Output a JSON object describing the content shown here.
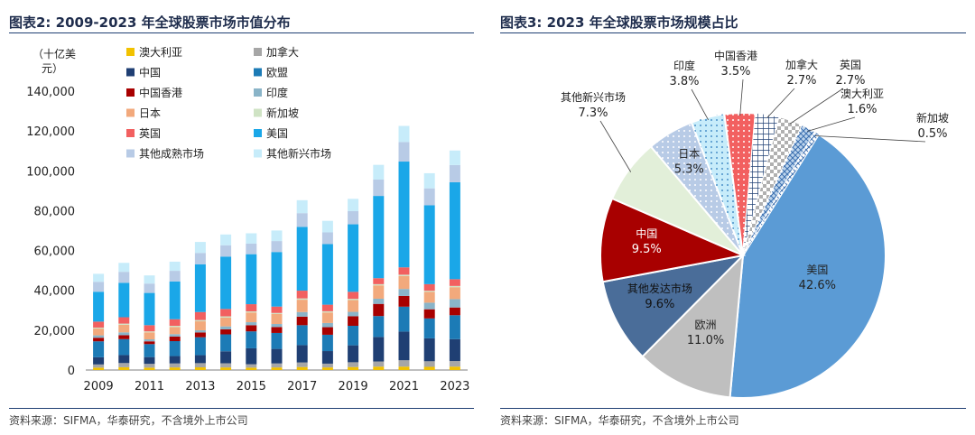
{
  "left_panel": {
    "title": "图表2:  2009-2023 年全球股票市场市值分布",
    "source": "资料来源：SIFMA，华泰研究，不含境外上市公司"
  },
  "right_panel": {
    "title": "图表3:  2023 年全球股票市场规模占比",
    "source": "资料来源：SIFMA，华泰研究，不含境外上市公司"
  },
  "colors": {
    "澳大利亚": "#f2c200",
    "加拿大": "#a6a6a6",
    "中国": "#1f3f73",
    "欧盟": "#1c7bb6",
    "中国香港": "#a80000",
    "印度": "#8ab4c8",
    "日本": "#f2a97c",
    "新加坡": "#cfe3c4",
    "英国": "#f26060",
    "美国": "#1aa7e8",
    "其他成熟市场": "#b8cbe6",
    "其他新兴市场": "#c7ecfa",
    "欧洲": "#bfbfbf",
    "其他发达市场": "#4a6d99",
    "美国_pie": "#5b9bd5",
    "其他新兴市场_pie": "#e2efd9",
    "澳大利亚_pie": "#bcd4ec"
  },
  "chart_data": [
    {
      "type": "bar",
      "stacked": true,
      "title": "2009-2023 年全球股票市场市值分布",
      "ylabel": "（十亿美元）",
      "ylabel_lines": [
        "（十亿美",
        "元）"
      ],
      "ylim": [
        0,
        140000
      ],
      "yticks": [
        0,
        20000,
        40000,
        60000,
        80000,
        100000,
        120000,
        140000
      ],
      "ytick_labels": [
        "0",
        "20,000",
        "40,000",
        "60,000",
        "80,000",
        "100,000",
        "120,000",
        "140,000"
      ],
      "categories": [
        2009,
        2010,
        2011,
        2012,
        2013,
        2014,
        2015,
        2016,
        2017,
        2018,
        2019,
        2020,
        2021,
        2022,
        2023
      ],
      "xtick_labels": [
        "2009",
        "2011",
        "2013",
        "2015",
        "2017",
        "2019",
        "2021",
        "2023"
      ],
      "legend": [
        "澳大利亚",
        "加拿大",
        "中国",
        "欧盟",
        "中国香港",
        "印度",
        "日本",
        "新加坡",
        "英国",
        "美国",
        "其他成熟市场",
        "其他新兴市场"
      ],
      "series": [
        {
          "name": "澳大利亚",
          "values": [
            1200,
            1400,
            1200,
            1300,
            1350,
            1300,
            1200,
            1300,
            1500,
            1300,
            1500,
            1700,
            1700,
            1600,
            1700
          ]
        },
        {
          "name": "加拿大",
          "values": [
            1600,
            2100,
            1900,
            2000,
            2100,
            2100,
            1700,
            2000,
            2300,
            1900,
            2400,
            2600,
            3200,
            2800,
            2800
          ]
        },
        {
          "name": "中国",
          "values": [
            3600,
            4000,
            3400,
            3700,
            4000,
            6000,
            8000,
            7300,
            8700,
            6300,
            8500,
            12300,
            14400,
            11500,
            11000
          ]
        },
        {
          "name": "欧盟",
          "values": [
            8000,
            8000,
            6500,
            7500,
            9000,
            8500,
            8500,
            8000,
            10000,
            8200,
            9800,
            10500,
            12500,
            10000,
            12000
          ]
        },
        {
          "name": "中国香港",
          "values": [
            1800,
            2000,
            1400,
            2300,
            2400,
            2500,
            3100,
            3000,
            4300,
            3800,
            4800,
            6100,
            5400,
            4600,
            3900
          ]
        },
        {
          "name": "印度",
          "values": [
            1200,
            1400,
            1000,
            1200,
            1100,
            1500,
            1500,
            1500,
            2300,
            2100,
            2200,
            2600,
            3500,
            3300,
            4200
          ]
        },
        {
          "name": "日本",
          "values": [
            3400,
            3800,
            3500,
            3600,
            4500,
            4400,
            4900,
            5000,
            6200,
            5300,
            5900,
            6700,
            6500,
            5400,
            6000
          ]
        },
        {
          "name": "新加坡",
          "values": [
            500,
            600,
            500,
            600,
            650,
            650,
            550,
            550,
            650,
            600,
            650,
            600,
            650,
            600,
            600
          ]
        },
        {
          "name": "英国",
          "values": [
            3000,
            3200,
            3100,
            3300,
            4000,
            3700,
            3600,
            3200,
            3900,
            3300,
            3500,
            3000,
            3700,
            3300,
            3400
          ]
        },
        {
          "name": "美国",
          "values": [
            15000,
            17300,
            16200,
            19000,
            24000,
            26300,
            25100,
            27400,
            32000,
            30400,
            33900,
            41300,
            53100,
            39600,
            48700
          ]
        },
        {
          "name": "其他成熟市场",
          "values": [
            5000,
            5500,
            4700,
            5300,
            5700,
            5700,
            5300,
            5500,
            6900,
            5900,
            6600,
            8200,
            9800,
            8500,
            8600
          ]
        },
        {
          "name": "其他新兴市场",
          "values": [
            4000,
            4500,
            4100,
            4600,
            5500,
            5400,
            5200,
            5300,
            6500,
            5800,
            6200,
            7400,
            8100,
            7600,
            7300
          ]
        }
      ]
    },
    {
      "type": "pie",
      "title": "2023 年全球股票市场规模占比",
      "slices": [
        {
          "name": "美国",
          "value": 42.6,
          "label": "42.6%",
          "pattern": "solid"
        },
        {
          "name": "欧洲",
          "value": 11.0,
          "label": "11.0%",
          "pattern": "solid"
        },
        {
          "name": "其他发达市场",
          "value": 9.6,
          "label": "9.6%",
          "pattern": "solid"
        },
        {
          "name": "中国",
          "value": 9.5,
          "label": "9.5%",
          "pattern": "solid"
        },
        {
          "name": "其他新兴市场",
          "value": 7.3,
          "label": "7.3%",
          "pattern": "solid"
        },
        {
          "name": "日本",
          "value": 5.3,
          "label": "5.3%",
          "pattern": "dots"
        },
        {
          "name": "印度",
          "value": 3.8,
          "label": "3.8%",
          "pattern": "dots"
        },
        {
          "name": "中国香港",
          "value": 3.5,
          "label": "3.5%",
          "pattern": "dots"
        },
        {
          "name": "加拿大",
          "value": 2.7,
          "label": "2.7%",
          "pattern": "grid"
        },
        {
          "name": "英国",
          "value": 2.7,
          "label": "2.7%",
          "pattern": "check"
        },
        {
          "name": "澳大利亚",
          "value": 1.6,
          "label": "1.6%",
          "pattern": "cross"
        },
        {
          "name": "新加坡",
          "value": 0.5,
          "label": "0.5%",
          "pattern": "cross"
        }
      ]
    }
  ]
}
